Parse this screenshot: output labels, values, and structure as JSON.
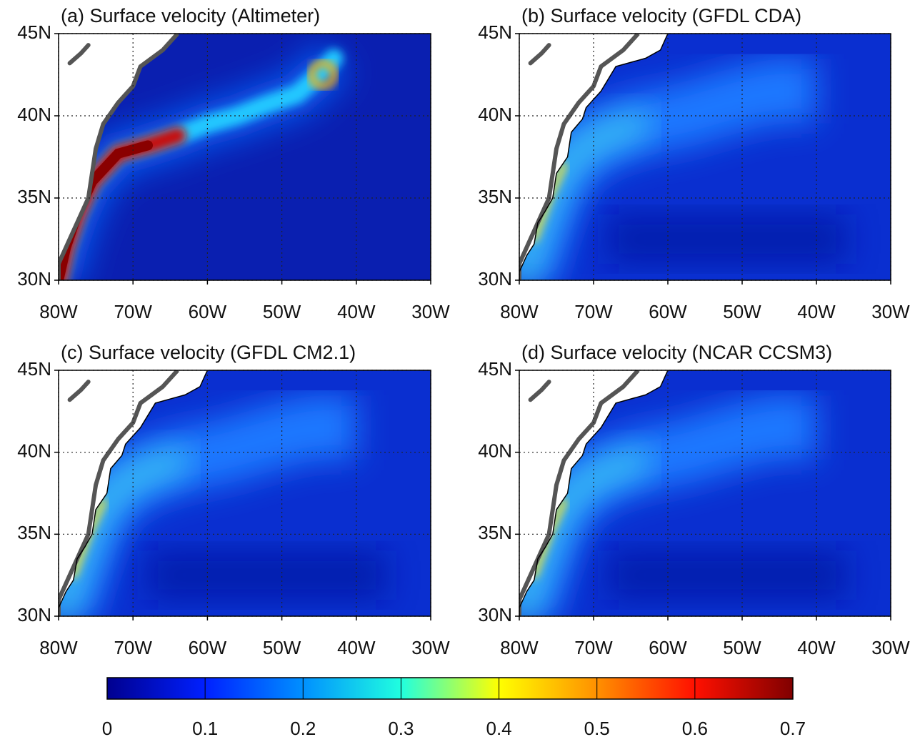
{
  "chart_data": [
    {
      "type": "map",
      "title": "(a) Surface velocity (Altimeter)",
      "xlim": [
        -80,
        -30
      ],
      "ylim": [
        30,
        45
      ],
      "xticks": [
        {
          "value": -80,
          "label": "80W"
        },
        {
          "value": -70,
          "label": "70W"
        },
        {
          "value": -60,
          "label": "60W"
        },
        {
          "value": -50,
          "label": "50W"
        },
        {
          "value": -40,
          "label": "40W"
        },
        {
          "value": -30,
          "label": "30W"
        }
      ],
      "yticks": [
        {
          "value": 30,
          "label": "30N"
        },
        {
          "value": 35,
          "label": "35N"
        },
        {
          "value": 40,
          "label": "40N"
        },
        {
          "value": 45,
          "label": "45N"
        }
      ],
      "grid": true
    },
    {
      "type": "map",
      "title": "(b) Surface velocity (GFDL CDA)",
      "xlim": [
        -80,
        -30
      ],
      "ylim": [
        30,
        45
      ],
      "xticks": [
        {
          "value": -80,
          "label": "80W"
        },
        {
          "value": -70,
          "label": "70W"
        },
        {
          "value": -60,
          "label": "60W"
        },
        {
          "value": -50,
          "label": "50W"
        },
        {
          "value": -40,
          "label": "40W"
        },
        {
          "value": -30,
          "label": "30W"
        }
      ],
      "yticks": [
        {
          "value": 30,
          "label": "30N"
        },
        {
          "value": 35,
          "label": "35N"
        },
        {
          "value": 40,
          "label": "40N"
        },
        {
          "value": 45,
          "label": "45N"
        }
      ],
      "grid": true
    },
    {
      "type": "map",
      "title": "(c) Surface velocity (GFDL CM2.1)",
      "xlim": [
        -80,
        -30
      ],
      "ylim": [
        30,
        45
      ],
      "xticks": [
        {
          "value": -80,
          "label": "80W"
        },
        {
          "value": -70,
          "label": "70W"
        },
        {
          "value": -60,
          "label": "60W"
        },
        {
          "value": -50,
          "label": "50W"
        },
        {
          "value": -40,
          "label": "40W"
        },
        {
          "value": -30,
          "label": "30W"
        }
      ],
      "yticks": [
        {
          "value": 30,
          "label": "30N"
        },
        {
          "value": 35,
          "label": "35N"
        },
        {
          "value": 40,
          "label": "40N"
        },
        {
          "value": 45,
          "label": "45N"
        }
      ],
      "grid": true
    },
    {
      "type": "map",
      "title": "(d) Surface velocity (NCAR CCSM3)",
      "xlim": [
        -80,
        -30
      ],
      "ylim": [
        30,
        45
      ],
      "xticks": [
        {
          "value": -80,
          "label": "80W"
        },
        {
          "value": -70,
          "label": "70W"
        },
        {
          "value": -60,
          "label": "60W"
        },
        {
          "value": -50,
          "label": "50W"
        },
        {
          "value": -40,
          "label": "40W"
        },
        {
          "value": -30,
          "label": "30W"
        }
      ],
      "yticks": [
        {
          "value": 30,
          "label": "30N"
        },
        {
          "value": 35,
          "label": "35N"
        },
        {
          "value": 40,
          "label": "40N"
        },
        {
          "value": 45,
          "label": "45N"
        }
      ],
      "grid": true
    },
    {
      "type": "colorbar",
      "xlim": [
        0,
        0.7
      ],
      "xticks": [
        0,
        0.1,
        0.2,
        0.3,
        0.4,
        0.5,
        0.6,
        0.7
      ],
      "colors": [
        "#00008f",
        "#0020ff",
        "#0090ff",
        "#20ffdf",
        "#ffff00",
        "#ff9000",
        "#ff1000",
        "#800000"
      ]
    }
  ]
}
